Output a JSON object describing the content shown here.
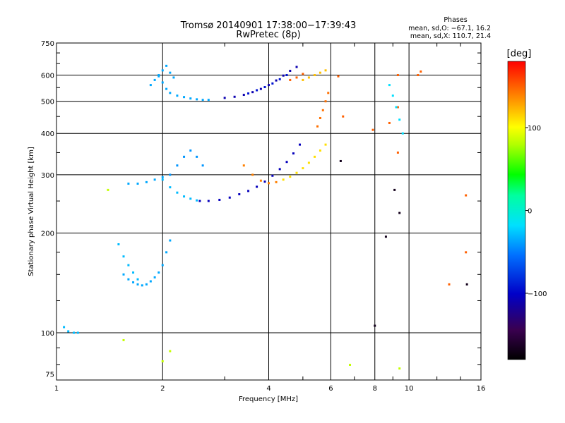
{
  "chart_data": {
    "type": "scatter",
    "title": "Tromsø 20140901 17:38:00−17:39:43",
    "subtitle": "RwPretec (8p)",
    "stats": {
      "heading": "Phases",
      "line1": "mean, sd,O: −67.1, 16.2",
      "line2": "mean, sd,X: 110.7, 21.4"
    },
    "xlabel": "Frequency [MHz]",
    "ylabel": "Stationary phase Virtual Height [km]",
    "x_scale": "log",
    "y_scale": "log",
    "xlim": [
      1,
      16
    ],
    "ylim": [
      72,
      750
    ],
    "x_ticks": [
      1,
      2,
      4,
      6,
      8,
      10,
      16
    ],
    "x_tick_labels": [
      "1",
      "2",
      "4",
      "6",
      "8",
      "10",
      "16"
    ],
    "y_ticks": [
      75,
      100,
      200,
      300,
      400,
      500,
      600,
      750
    ],
    "y_tick_labels": [
      "75",
      "100",
      "200",
      "300",
      "400",
      "500",
      "600",
      "750"
    ],
    "grid": true,
    "colorbar": {
      "label": "[deg]",
      "range": [
        -180,
        180
      ],
      "ticks": [
        100,
        0,
        -100
      ],
      "tick_labels": [
        "100",
        "0",
        "−100"
      ]
    },
    "series": [
      {
        "x": [
          3.0,
          3.2,
          3.4,
          3.6,
          3.8,
          4.0,
          4.2,
          4.4,
          4.6,
          4.8
        ],
        "y": [
          512,
          516,
          523,
          533,
          545,
          560,
          578,
          598,
          618,
          635
        ],
        "phase": -110
      },
      {
        "x": [
          3.5,
          3.7,
          3.9,
          4.1,
          4.3,
          4.5
        ],
        "y": [
          528,
          540,
          552,
          566,
          583,
          600
        ],
        "phase": -95
      },
      {
        "x": [
          1.85,
          1.9,
          1.95,
          2.0,
          2.05,
          2.1,
          2.2,
          2.3,
          2.4,
          2.5,
          2.6,
          2.7
        ],
        "y": [
          560,
          580,
          595,
          570,
          545,
          530,
          520,
          515,
          510,
          507,
          505,
          505
        ],
        "phase": -55
      },
      {
        "x": [
          1.95,
          2.0,
          2.05,
          2.1,
          2.15
        ],
        "y": [
          600,
          620,
          640,
          610,
          590
        ],
        "phase": -55
      },
      {
        "x": [
          2.55,
          2.7,
          2.9,
          3.1,
          3.3,
          3.5,
          3.7,
          3.9,
          4.1,
          4.3,
          4.5,
          4.7,
          4.9
        ],
        "y": [
          250,
          250,
          252,
          256,
          262,
          268,
          276,
          286,
          298,
          312,
          328,
          348,
          370
        ],
        "phase": -105
      },
      {
        "x": [
          2.0,
          2.1,
          2.2,
          2.3,
          2.4,
          2.5
        ],
        "y": [
          290,
          275,
          265,
          258,
          254,
          251
        ],
        "phase": -50
      },
      {
        "x": [
          2.1,
          2.2,
          2.3,
          2.4,
          2.5,
          2.6
        ],
        "y": [
          300,
          320,
          340,
          355,
          340,
          320
        ],
        "phase": -60
      },
      {
        "x": [
          4.4,
          4.6,
          4.8,
          5.0,
          5.2,
          5.4,
          5.6,
          5.8
        ],
        "y": [
          290,
          296,
          304,
          314,
          326,
          340,
          355,
          370
        ],
        "phase": 110
      },
      {
        "x": [
          3.4,
          3.6,
          3.8,
          4.0,
          4.2
        ],
        "y": [
          320,
          300,
          288,
          283,
          285
        ],
        "phase": 140
      },
      {
        "x": [
          5.0,
          5.2,
          5.4,
          5.6,
          5.8
        ],
        "y": [
          580,
          590,
          600,
          610,
          620
        ],
        "phase": 120
      },
      {
        "x": [
          4.6,
          4.8,
          5.0
        ],
        "y": [
          580,
          590,
          605
        ],
        "phase": 150
      },
      {
        "x": [
          5.5,
          5.6,
          5.7,
          5.8,
          5.9
        ],
        "y": [
          420,
          445,
          470,
          500,
          530
        ],
        "phase": 145
      },
      {
        "x": [
          1.55,
          1.6,
          1.65,
          1.7,
          1.75,
          1.8,
          1.85,
          1.9,
          1.95,
          2.0,
          2.05,
          2.1
        ],
        "y": [
          150,
          145,
          142,
          140,
          139,
          140,
          143,
          147,
          152,
          160,
          175,
          190
        ],
        "phase": -55
      },
      {
        "x": [
          1.5,
          1.55,
          1.6,
          1.65,
          1.7
        ],
        "y": [
          185,
          170,
          160,
          152,
          145
        ],
        "phase": -50
      },
      {
        "x": [
          1.6,
          1.7,
          1.8,
          1.9,
          2.0
        ],
        "y": [
          282,
          282,
          285,
          290,
          295
        ],
        "phase": -55
      },
      {
        "x": [
          1.05,
          1.08,
          1.12,
          1.15
        ],
        "y": [
          104,
          101,
          100,
          100
        ],
        "phase": -50
      },
      {
        "x": [
          6.3,
          6.5,
          7.9,
          8.8,
          9.3,
          9.3,
          9.3,
          10.6,
          10.8,
          13.0,
          14.5,
          14.5
        ],
        "y": [
          595,
          450,
          410,
          430,
          600,
          480,
          350,
          600,
          615,
          140,
          260,
          175
        ],
        "phase": 150
      },
      {
        "x": [
          6.4,
          8.0,
          8.6,
          9.1,
          9.4,
          14.6
        ],
        "y": [
          330,
          105,
          195,
          270,
          230,
          140
        ],
        "phase": -170
      },
      {
        "x": [
          8.8,
          9.0,
          9.2,
          9.4,
          9.6
        ],
        "y": [
          560,
          520,
          480,
          440,
          400
        ],
        "phase": -40
      },
      {
        "x": [
          1.4,
          1.55,
          2.0,
          2.1,
          6.8,
          9.4
        ],
        "y": [
          270,
          95,
          82,
          88,
          80,
          78
        ],
        "phase": 70
      }
    ]
  }
}
